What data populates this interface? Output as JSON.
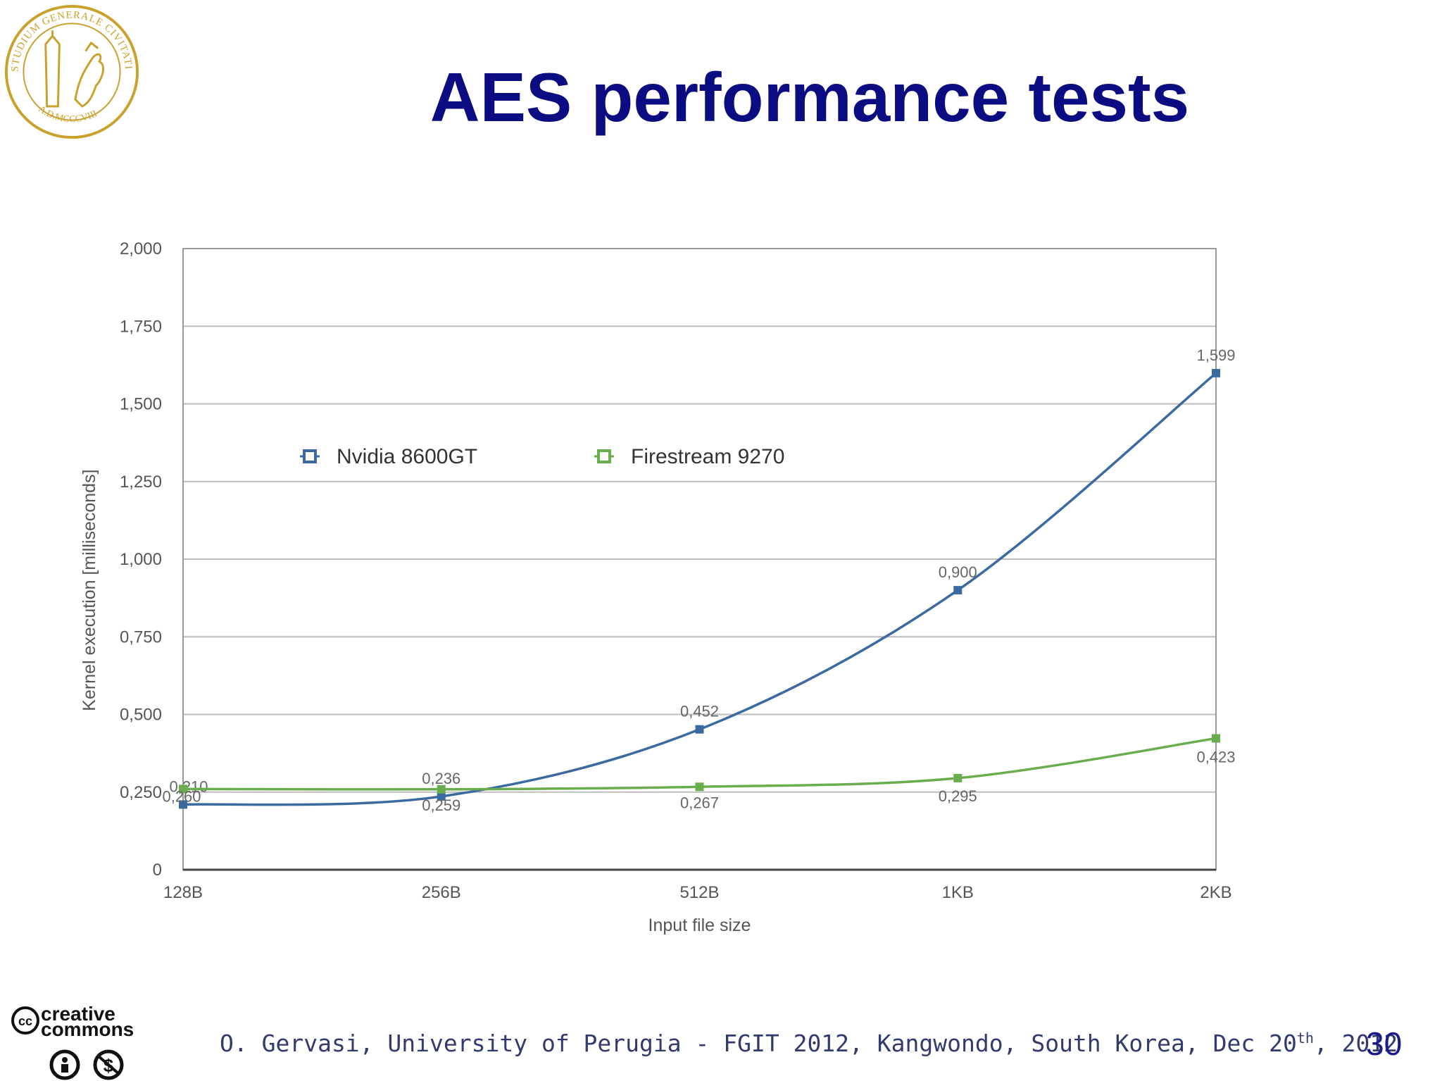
{
  "slide": {
    "title": "AES performance tests",
    "footer_main": "O. Gervasi, University of Perugia -  FGIT 2012, Kangwondo, South Korea, Dec 20",
    "footer_sup": "th",
    "footer_tail": ", 2012",
    "page_number": "30",
    "seal_text_top": "STUDIUM GENERALE CIVITATIS PERUSII",
    "seal_text_bottom": "A.D.MCCCVIII",
    "cc_word_1": "creative",
    "cc_word_2": "commons"
  },
  "colors": {
    "title": "#0b0b82",
    "nvidia": "#3b6aa0",
    "firestream": "#6aad4e",
    "seal": "#c9a12c"
  },
  "chart_data": {
    "type": "line",
    "xlabel": "Input file size",
    "ylabel": "Kernel execution [milliseconds]",
    "categories": [
      "128B",
      "256B",
      "512B",
      "1KB",
      "2KB"
    ],
    "y_ticks": [
      "0",
      "0,250",
      "0,500",
      "0,750",
      "1,000",
      "1,250",
      "1,500",
      "1,750",
      "2,000"
    ],
    "ylim": [
      0,
      2.0
    ],
    "grid": true,
    "legend_position": "top-left inside",
    "series": [
      {
        "name": "Nvidia 8600GT",
        "color": "#3b6aa0",
        "values": [
          0.21,
          0.236,
          0.452,
          0.9,
          1.599
        ],
        "labels": [
          "0,210",
          "0,236",
          "0,452",
          "0,900",
          "1,599"
        ]
      },
      {
        "name": "Firestream 9270",
        "color": "#6aad4e",
        "values": [
          0.26,
          0.259,
          0.267,
          0.295,
          0.423
        ],
        "labels": [
          "0,260",
          "0,259",
          "0,267",
          "0,295",
          "0,423"
        ]
      }
    ]
  }
}
